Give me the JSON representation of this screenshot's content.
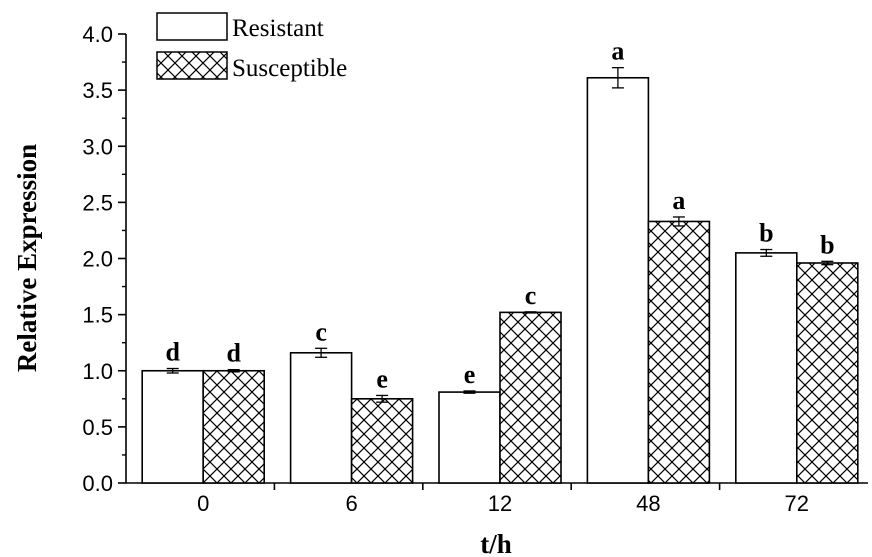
{
  "chart_data": {
    "type": "bar",
    "xlabel": "t/h",
    "ylabel": "Relative Expression",
    "categories": [
      "0",
      "6",
      "12",
      "48",
      "72"
    ],
    "ylim": [
      0,
      4.0
    ],
    "yticks": [
      "0.0",
      "0.5",
      "1.0",
      "1.5",
      "2.0",
      "2.5",
      "3.0",
      "3.5",
      "4.0"
    ],
    "legend_position": "top-left",
    "series": [
      {
        "name": "Resistant",
        "pattern": "none",
        "values": [
          1.0,
          1.16,
          0.81,
          3.61,
          2.05
        ],
        "errors": [
          0.02,
          0.04,
          0.01,
          0.09,
          0.03
        ],
        "labels": [
          "d",
          "c",
          "e",
          "a",
          "b"
        ]
      },
      {
        "name": "Susceptible",
        "pattern": "crosshatch",
        "values": [
          1.0,
          0.75,
          1.52,
          2.33,
          1.96
        ],
        "errors": [
          0.01,
          0.03,
          0.005,
          0.04,
          0.015
        ],
        "labels": [
          "d",
          "e",
          "c",
          "a",
          "b"
        ]
      }
    ],
    "colors": {
      "bar_stroke": "#000000",
      "bar_fill": "#ffffff"
    }
  }
}
